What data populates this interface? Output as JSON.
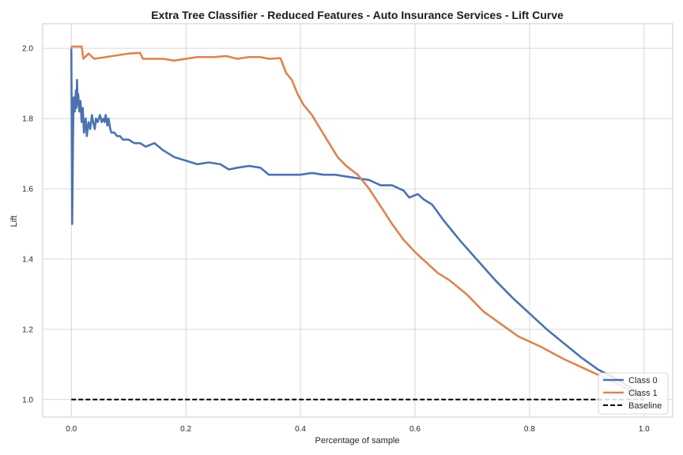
{
  "chart_data": {
    "type": "line",
    "title": "Extra Tree Classifier - Reduced Features - Auto Insurance Services - Lift Curve",
    "xlabel": "Percentage of sample",
    "ylabel": "Lift",
    "xlim": [
      -0.05,
      1.05
    ],
    "ylim": [
      0.95,
      2.07
    ],
    "xticks": [
      0.0,
      0.2,
      0.4,
      0.6,
      0.8,
      1.0
    ],
    "xtick_labels": [
      "0.0",
      "0.2",
      "0.4",
      "0.6",
      "0.8",
      "1.0"
    ],
    "yticks": [
      1.0,
      1.2,
      1.4,
      1.6,
      1.8,
      2.0
    ],
    "ytick_labels": [
      "1.0",
      "1.2",
      "1.4",
      "1.6",
      "1.8",
      "2.0"
    ],
    "grid": true,
    "legend_position": "lower-right",
    "series": [
      {
        "name": "Class 0",
        "color": "#4c72b0",
        "dash": "solid",
        "points": [
          [
            0.0,
            2.0
          ],
          [
            0.0015,
            1.5
          ],
          [
            0.003,
            1.75
          ],
          [
            0.004,
            1.86
          ],
          [
            0.006,
            1.82
          ],
          [
            0.008,
            1.88
          ],
          [
            0.009,
            1.83
          ],
          [
            0.01,
            1.91
          ],
          [
            0.011,
            1.84
          ],
          [
            0.012,
            1.87
          ],
          [
            0.014,
            1.82
          ],
          [
            0.016,
            1.85
          ],
          [
            0.018,
            1.79
          ],
          [
            0.02,
            1.83
          ],
          [
            0.022,
            1.76
          ],
          [
            0.025,
            1.8
          ],
          [
            0.027,
            1.75
          ],
          [
            0.03,
            1.79
          ],
          [
            0.033,
            1.77
          ],
          [
            0.036,
            1.81
          ],
          [
            0.038,
            1.79
          ],
          [
            0.041,
            1.77
          ],
          [
            0.043,
            1.8
          ],
          [
            0.046,
            1.79
          ],
          [
            0.05,
            1.81
          ],
          [
            0.053,
            1.79
          ],
          [
            0.056,
            1.8
          ],
          [
            0.058,
            1.79
          ],
          [
            0.06,
            1.81
          ],
          [
            0.063,
            1.78
          ],
          [
            0.065,
            1.8
          ],
          [
            0.068,
            1.77
          ],
          [
            0.07,
            1.76
          ],
          [
            0.075,
            1.76
          ],
          [
            0.08,
            1.75
          ],
          [
            0.085,
            1.75
          ],
          [
            0.09,
            1.74
          ],
          [
            0.1,
            1.74
          ],
          [
            0.11,
            1.73
          ],
          [
            0.12,
            1.73
          ],
          [
            0.13,
            1.72
          ],
          [
            0.145,
            1.73
          ],
          [
            0.16,
            1.71
          ],
          [
            0.18,
            1.69
          ],
          [
            0.2,
            1.68
          ],
          [
            0.22,
            1.67
          ],
          [
            0.24,
            1.675
          ],
          [
            0.26,
            1.67
          ],
          [
            0.275,
            1.655
          ],
          [
            0.29,
            1.66
          ],
          [
            0.31,
            1.665
          ],
          [
            0.33,
            1.66
          ],
          [
            0.345,
            1.64
          ],
          [
            0.36,
            1.64
          ],
          [
            0.38,
            1.64
          ],
          [
            0.4,
            1.64
          ],
          [
            0.42,
            1.645
          ],
          [
            0.44,
            1.64
          ],
          [
            0.46,
            1.64
          ],
          [
            0.48,
            1.635
          ],
          [
            0.5,
            1.63
          ],
          [
            0.52,
            1.625
          ],
          [
            0.54,
            1.61
          ],
          [
            0.56,
            1.61
          ],
          [
            0.58,
            1.595
          ],
          [
            0.59,
            1.575
          ],
          [
            0.605,
            1.585
          ],
          [
            0.615,
            1.57
          ],
          [
            0.63,
            1.555
          ],
          [
            0.65,
            1.51
          ],
          [
            0.68,
            1.45
          ],
          [
            0.71,
            1.395
          ],
          [
            0.74,
            1.34
          ],
          [
            0.77,
            1.29
          ],
          [
            0.8,
            1.245
          ],
          [
            0.83,
            1.2
          ],
          [
            0.86,
            1.16
          ],
          [
            0.89,
            1.12
          ],
          [
            0.92,
            1.085
          ],
          [
            0.95,
            1.06
          ],
          [
            0.98,
            1.03
          ],
          [
            1.0,
            1.0
          ]
        ]
      },
      {
        "name": "Class 1",
        "color": "#dd8452",
        "dash": "solid",
        "points": [
          [
            0.0,
            2.0
          ],
          [
            0.001,
            2.005
          ],
          [
            0.018,
            2.005
          ],
          [
            0.021,
            1.97
          ],
          [
            0.03,
            1.985
          ],
          [
            0.04,
            1.97
          ],
          [
            0.06,
            1.975
          ],
          [
            0.08,
            1.98
          ],
          [
            0.1,
            1.985
          ],
          [
            0.12,
            1.987
          ],
          [
            0.125,
            1.97
          ],
          [
            0.14,
            1.97
          ],
          [
            0.16,
            1.97
          ],
          [
            0.18,
            1.965
          ],
          [
            0.2,
            1.97
          ],
          [
            0.22,
            1.975
          ],
          [
            0.25,
            1.975
          ],
          [
            0.27,
            1.978
          ],
          [
            0.29,
            1.97
          ],
          [
            0.31,
            1.975
          ],
          [
            0.33,
            1.975
          ],
          [
            0.345,
            1.97
          ],
          [
            0.365,
            1.972
          ],
          [
            0.375,
            1.93
          ],
          [
            0.385,
            1.91
          ],
          [
            0.395,
            1.87
          ],
          [
            0.405,
            1.84
          ],
          [
            0.42,
            1.81
          ],
          [
            0.435,
            1.77
          ],
          [
            0.45,
            1.73
          ],
          [
            0.465,
            1.69
          ],
          [
            0.48,
            1.665
          ],
          [
            0.5,
            1.64
          ],
          [
            0.52,
            1.6
          ],
          [
            0.54,
            1.55
          ],
          [
            0.56,
            1.5
          ],
          [
            0.58,
            1.455
          ],
          [
            0.6,
            1.42
          ],
          [
            0.62,
            1.39
          ],
          [
            0.64,
            1.36
          ],
          [
            0.66,
            1.34
          ],
          [
            0.69,
            1.3
          ],
          [
            0.72,
            1.25
          ],
          [
            0.75,
            1.215
          ],
          [
            0.78,
            1.18
          ],
          [
            0.82,
            1.15
          ],
          [
            0.86,
            1.115
          ],
          [
            0.9,
            1.085
          ],
          [
            0.94,
            1.055
          ],
          [
            0.97,
            1.03
          ],
          [
            1.0,
            1.0
          ]
        ]
      },
      {
        "name": "Baseline",
        "color": "#000000",
        "dash": "dashed",
        "points": [
          [
            0.0,
            1.0
          ],
          [
            1.0,
            1.0
          ]
        ]
      }
    ]
  }
}
